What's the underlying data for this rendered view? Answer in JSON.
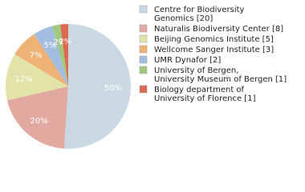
{
  "chart_data": {
    "type": "pie",
    "categories": [
      [
        "Centre for Biodiversity",
        "Genomics [20]"
      ],
      [
        "Naturalis Biodiversity Center [8]"
      ],
      [
        "Beijing Genomics Institute [5]"
      ],
      [
        "Wellcome Sanger Institute [3]"
      ],
      [
        "UMR Dynafor [2]"
      ],
      [
        "University of Bergen,",
        "University Museum of Bergen [1]"
      ],
      [
        "Biology department of",
        "University of Florence [1]"
      ]
    ],
    "values": [
      50,
      20,
      12,
      7,
      5,
      2,
      2
    ],
    "value_labels": [
      "50%",
      "20%",
      "12%",
      "7%",
      "5%",
      "2%",
      "2%"
    ],
    "colors": [
      "#cad8e4",
      "#e2a9a1",
      "#e2e3a8",
      "#efb274",
      "#a2bde0",
      "#a0c97e",
      "#dd6b52"
    ]
  }
}
